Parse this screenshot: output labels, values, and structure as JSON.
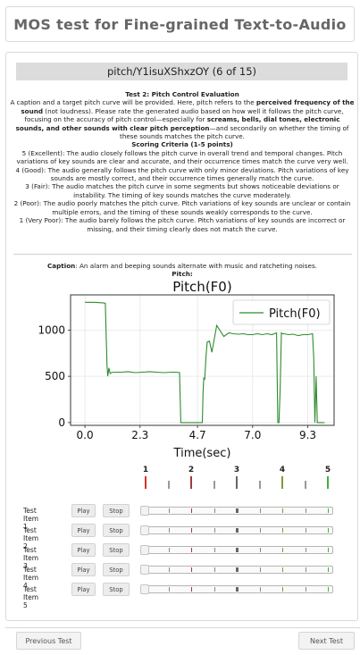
{
  "page_title": "MOS test for Fine-grained Text-to-Audio",
  "item_header": "pitch/Y1isuXShxzOY (6 of 15)",
  "instructions": {
    "heading": "Test 2: Pitch Control Evaluation",
    "intro_before": "A caption and a target pitch curve will be provided. Here, pitch refers to the ",
    "intro_bold1": "perceived frequency of the sound",
    "intro_mid": " (not loudness). Please rate the generated audio based on how well it follows the pitch curve, focusing on the accuracy of pitch control—especially for ",
    "intro_bold2": "screams, bells, dial tones, electronic sounds, and other sounds with clear pitch perception",
    "intro_after": "—and secondarily on whether the timing of these sounds matches the pitch curve.",
    "criteria_heading": "Scoring Criteria (1-5 points)",
    "criteria": [
      "5 (Excellent): The audio closely follows the pitch curve in overall trend and temporal changes. Pitch variations of key sounds are clear and accurate, and their occurrence times match the curve very well.",
      "4 (Good): The audio generally follows the pitch curve with only minor deviations. Pitch variations of key sounds are mostly correct, and their occurrence times generally match the curve.",
      "3 (Fair): The audio matches the pitch curve in some segments but shows noticeable deviations or instability. The timing of key sounds matches the curve moderately.",
      "2 (Poor): The audio poorly matches the pitch curve. Pitch variations of key sounds are unclear or contain multiple errors, and the timing of these sounds weakly corresponds to the curve.",
      "1 (Very Poor): The audio barely follows the pitch curve. Pitch variations of key sounds are incorrect or missing, and their timing clearly does not match the curve."
    ]
  },
  "caption_label": "Caption",
  "caption_text": ": An alarm and beeping sounds alternate with music and ratcheting noises.",
  "pitch_label": "Pitch:",
  "scale_labels": [
    "1",
    "2",
    "3",
    "4",
    "5"
  ],
  "scale_colors": [
    "#d9302c",
    "#a33a3a",
    "#666666",
    "#7a9a3a",
    "#3fae3f"
  ],
  "test_items": [
    {
      "label": "Test Item 1",
      "play": "Play",
      "stop": "Stop"
    },
    {
      "label": "Test Item 2",
      "play": "Play",
      "stop": "Stop"
    },
    {
      "label": "Test Item 3",
      "play": "Play",
      "stop": "Stop"
    },
    {
      "label": "Test Item 4",
      "play": "Play",
      "stop": "Stop"
    },
    {
      "label": "Test Item 5",
      "play": "Play",
      "stop": "Stop"
    }
  ],
  "nav": {
    "previous": "Previous Test",
    "next": "Next Test"
  },
  "chart_data": {
    "type": "line",
    "title": "Pitch(F0)",
    "xlabel": "Time(sec)",
    "ylabel": "",
    "xlim": [
      -0.6,
      10.4
    ],
    "ylim": [
      -30,
      1380
    ],
    "xticks": [
      "0.0",
      "2.3",
      "4.7",
      "7.0",
      "9.3"
    ],
    "xtick_values": [
      0.0,
      2.3,
      4.7,
      7.0,
      9.3
    ],
    "yticks": [
      "0",
      "500",
      "1000"
    ],
    "ytick_values": [
      0,
      500,
      1000
    ],
    "grid": true,
    "legend_position": "top-right",
    "line_color": "#2e8b2e",
    "series": [
      {
        "name": "Pitch(F0)",
        "x": [
          0.0,
          0.35,
          0.7,
          0.85,
          0.88,
          0.92,
          0.95,
          1.0,
          1.05,
          1.1,
          1.2,
          1.5,
          1.8,
          2.1,
          2.4,
          2.7,
          3.0,
          3.3,
          3.6,
          3.8,
          3.95,
          4.0,
          4.02,
          4.05,
          4.08,
          4.12,
          4.25,
          4.4,
          4.6,
          4.75,
          4.9,
          4.93,
          4.96,
          5.0,
          5.05,
          5.1,
          5.2,
          5.3,
          5.5,
          5.8,
          6.0,
          6.2,
          6.4,
          6.6,
          6.8,
          7.0,
          7.2,
          7.4,
          7.6,
          7.8,
          8.0,
          8.05,
          8.1,
          8.15,
          8.2,
          8.25,
          8.3,
          8.5,
          8.7,
          8.9,
          9.1,
          9.3,
          9.5,
          9.55,
          9.6,
          9.65,
          9.7,
          9.75,
          9.8,
          10.0
        ],
        "y": [
          1300,
          1300,
          1295,
          1290,
          1000,
          620,
          500,
          590,
          530,
          540,
          545,
          545,
          550,
          540,
          545,
          550,
          545,
          540,
          545,
          545,
          540,
          0,
          0,
          0,
          0,
          0,
          0,
          0,
          0,
          0,
          0,
          320,
          480,
          470,
          700,
          870,
          880,
          760,
          1050,
          930,
          970,
          960,
          955,
          960,
          950,
          950,
          960,
          950,
          960,
          950,
          970,
          0,
          0,
          380,
          970,
          960,
          960,
          950,
          955,
          940,
          950,
          950,
          960,
          700,
          0,
          500,
          0,
          0,
          0,
          0
        ]
      }
    ]
  }
}
